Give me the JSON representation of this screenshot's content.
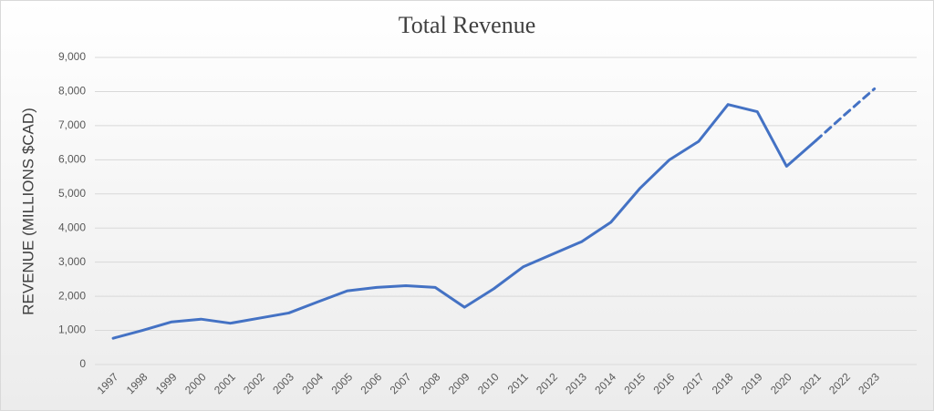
{
  "chart_data": {
    "type": "line",
    "title": "Total Revenue",
    "y_label": "REVENUE (MILLIONS $CAD)",
    "categories": [
      "1997",
      "1998",
      "1999",
      "2000",
      "2001",
      "2002",
      "2003",
      "2004",
      "2005",
      "2006",
      "2007",
      "2008",
      "2009",
      "2010",
      "2011",
      "2012",
      "2013",
      "2014",
      "2015",
      "2016",
      "2017",
      "2018",
      "2019",
      "2020",
      "2021",
      "2022",
      "2023"
    ],
    "series": [
      {
        "color": "#4472c4",
        "dashed": false,
        "values": [
          770,
          1000,
          1250,
          1330,
          1210,
          1360,
          1510,
          1840,
          2160,
          2260,
          2310,
          2260,
          1680,
          2220,
          2860,
          3230,
          3600,
          4170,
          5170,
          6000,
          6540,
          7620,
          7410,
          5810,
          6560,
          null,
          null
        ]
      },
      {
        "color": "#4472c4",
        "dashed": true,
        "values": [
          null,
          null,
          null,
          null,
          null,
          null,
          null,
          null,
          null,
          null,
          null,
          null,
          null,
          null,
          null,
          null,
          null,
          null,
          null,
          null,
          null,
          null,
          null,
          null,
          6560,
          7330,
          8080
        ]
      }
    ],
    "ylim": [
      0,
      9000
    ],
    "yticks": [
      0,
      {
        "value": 1000,
        "label": "1,000"
      },
      {
        "value": 2000,
        "label": "2,000"
      },
      {
        "value": 3000,
        "label": "3,000"
      },
      {
        "value": 4000,
        "label": "4,000"
      },
      {
        "value": 5000,
        "label": "5,000"
      },
      {
        "value": 6000,
        "label": "6,000"
      },
      {
        "value": 7000,
        "label": "7,000"
      },
      {
        "value": 8000,
        "label": "8,000"
      },
      {
        "value": 9000,
        "label": "9,000"
      }
    ],
    "grid": true
  }
}
